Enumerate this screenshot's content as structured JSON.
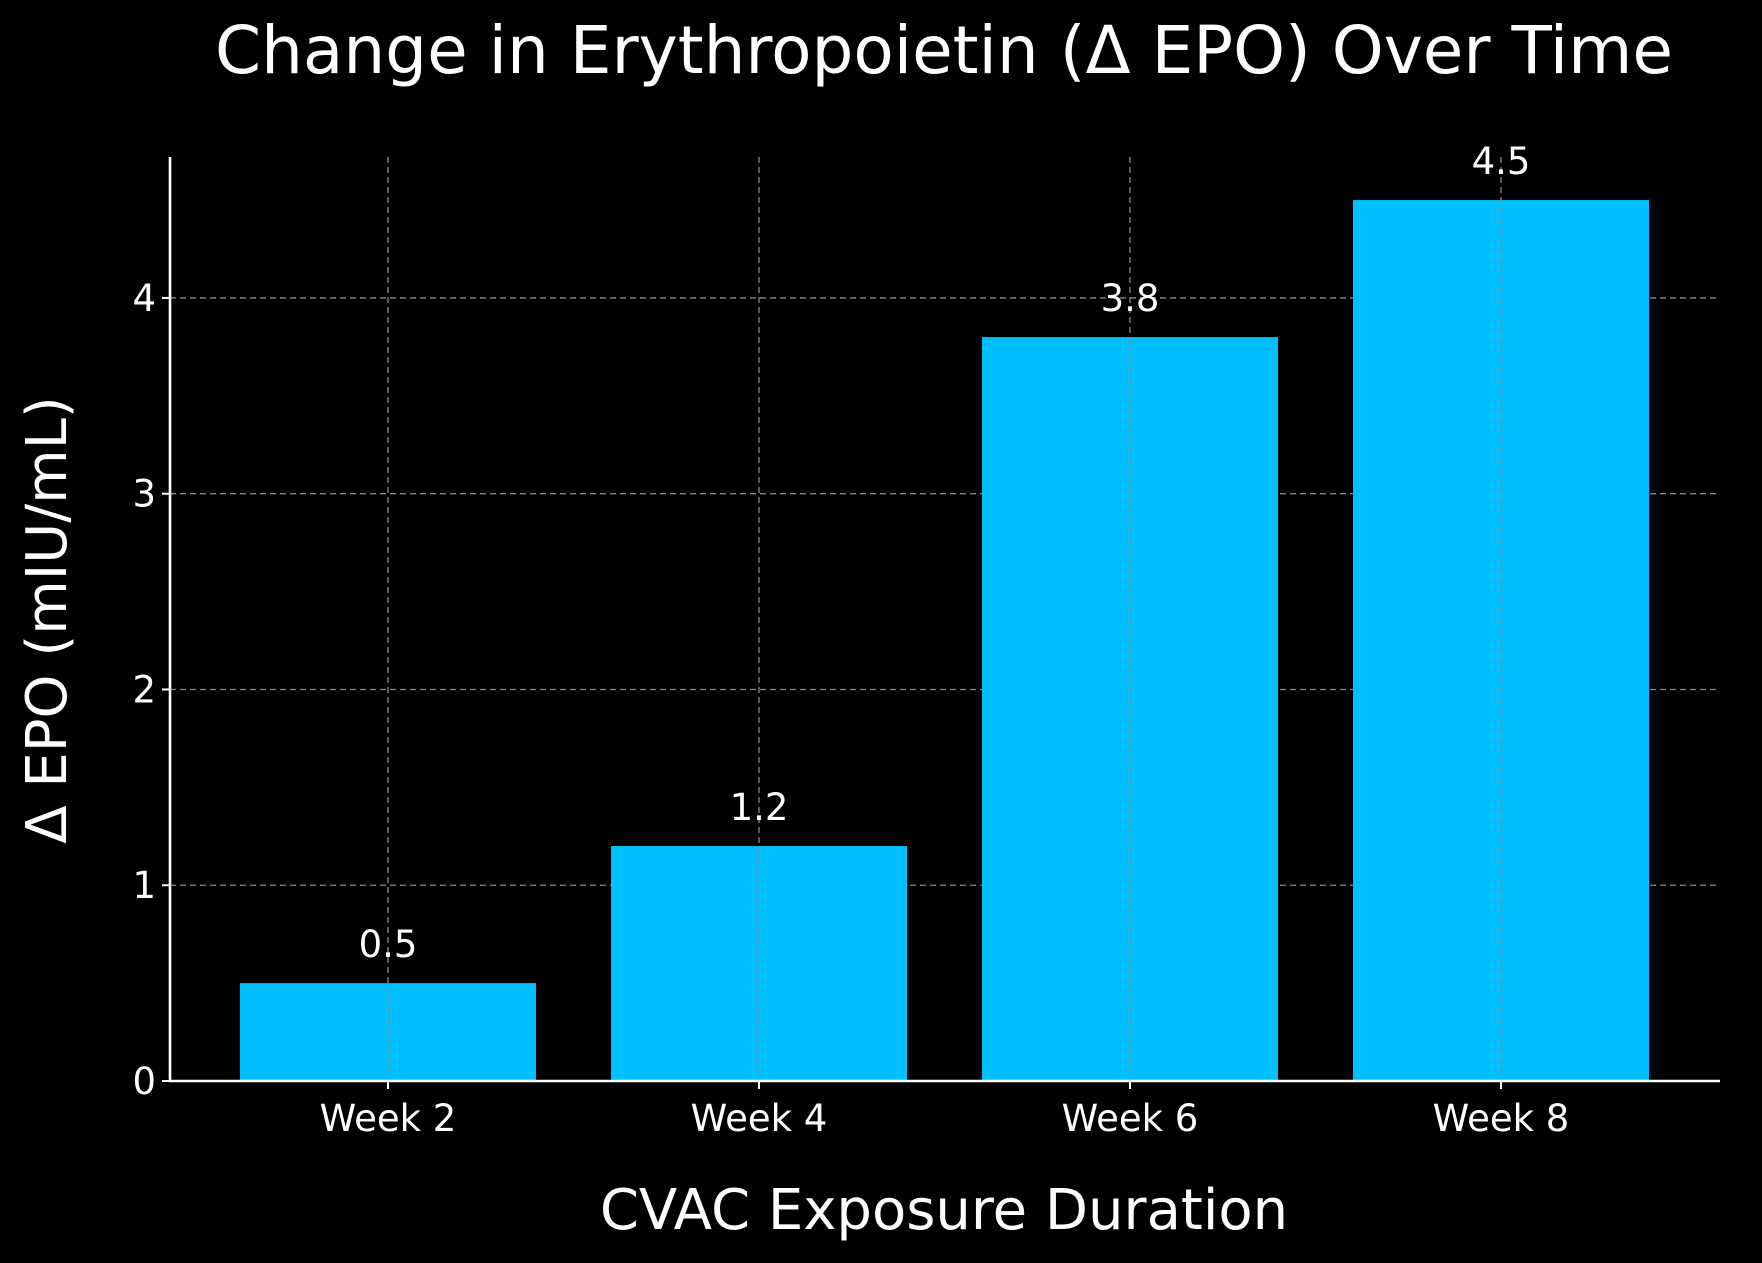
{
  "chart_data": {
    "type": "bar",
    "title": "Change in Erythropoietin (Δ EPO) Over Time",
    "xlabel": "CVAC Exposure Duration",
    "ylabel": "Δ EPO (mIU/mL)",
    "categories": [
      "Week 2",
      "Week 4",
      "Week 6",
      "Week 8"
    ],
    "values": [
      0.5,
      1.2,
      3.8,
      4.5
    ],
    "data_labels": [
      "0.5",
      "1.2",
      "3.8",
      "4.5"
    ],
    "ylim": [
      0,
      4.72
    ],
    "yticks": [
      0,
      1,
      2,
      3,
      4
    ],
    "ytick_labels": [
      "0",
      "1",
      "2",
      "3",
      "4"
    ],
    "grid": true,
    "bar_color": "#00bfff",
    "background_color": "#000000",
    "text_color": "#ffffff"
  }
}
